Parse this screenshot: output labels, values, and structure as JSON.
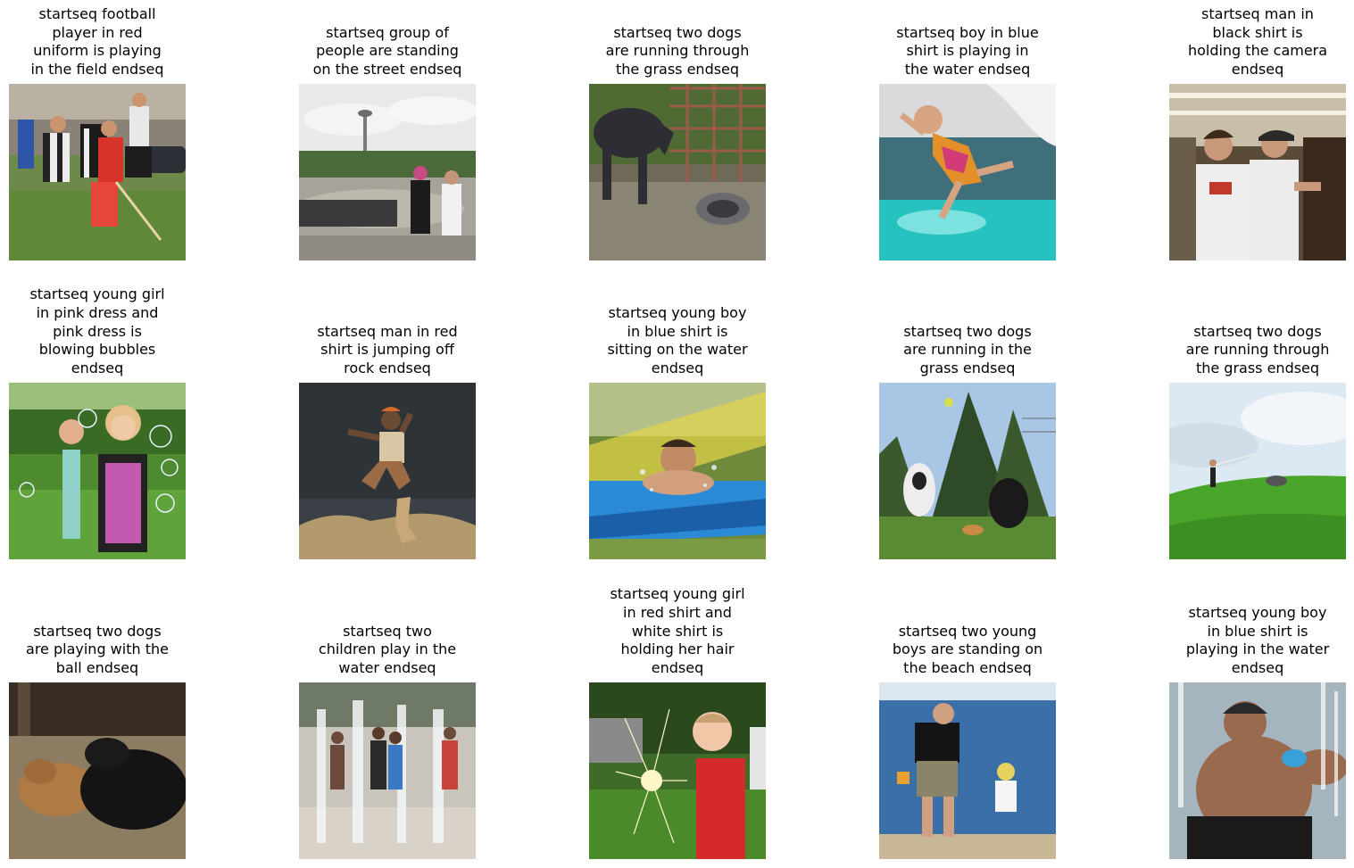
{
  "grid": {
    "rows": [
      {
        "cells": [
          {
            "caption": "startseq football\nplayer in red\nuniform is playing\nin the field endseq",
            "image": "football-players-photo"
          },
          {
            "caption": "startseq group of\npeople are standing\non the street endseq",
            "image": "crowd-near-tower-photo"
          },
          {
            "caption": "startseq two dogs\nare running through\nthe grass endseq",
            "image": "horse-and-dog-photo"
          },
          {
            "caption": "startseq boy in blue\nshirt is playing in\nthe water endseq",
            "image": "girl-jumping-into-pool-photo"
          },
          {
            "caption": "startseq man in\nblack shirt is\nholding the camera\nendseq",
            "image": "boys-in-store-photo"
          }
        ]
      },
      {
        "cells": [
          {
            "caption": "startseq young girl\nin pink dress and\npink dress is\nblowing bubbles\nendseq",
            "image": "girls-blowing-bubbles-photo"
          },
          {
            "caption": "startseq man in red\nshirt is jumping off\nrock endseq",
            "image": "man-jumping-rock-photo"
          },
          {
            "caption": "startseq young boy\nin blue shirt is\nsitting on the water\nendseq",
            "image": "boy-on-water-slide-photo"
          },
          {
            "caption": "startseq two dogs\nare running in the\ngrass endseq",
            "image": "dogs-under-trees-photo"
          },
          {
            "caption": "startseq two dogs\nare running through\nthe grass endseq",
            "image": "person-and-dog-on-hill-photo"
          }
        ]
      },
      {
        "cells": [
          {
            "caption": "startseq two dogs\nare playing with the\nball endseq",
            "image": "dogs-playing-on-bed-photo"
          },
          {
            "caption": "startseq two\nchildren play in the\nwater endseq",
            "image": "children-in-fountain-photo"
          },
          {
            "caption": "startseq young girl\nin red shirt and\nwhite shirt is\nholding her hair\nendseq",
            "image": "boy-with-sparkler-photo"
          },
          {
            "caption": "startseq two young\nboys are standing on\nthe beach endseq",
            "image": "man-and-child-on-beach-photo"
          },
          {
            "caption": "startseq young boy\nin blue shirt is\nplaying in the water\nendseq",
            "image": "boy-in-water-spray-photo"
          }
        ]
      }
    ]
  }
}
